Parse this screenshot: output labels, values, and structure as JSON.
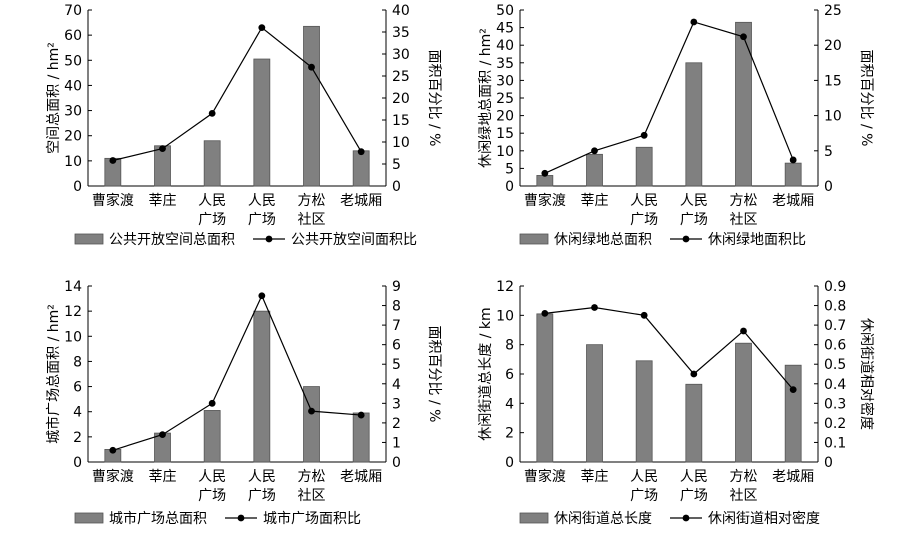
{
  "chart_data": [
    {
      "type": "bar",
      "categories": [
        [
          "曹家渡"
        ],
        [
          "莘庄"
        ],
        [
          "人民",
          "广场"
        ],
        [
          "人民",
          "广场"
        ],
        [
          "方松",
          "社区"
        ],
        [
          "老城厢"
        ]
      ],
      "series": [
        {
          "name": "公共开放空间总面积",
          "type": "bar",
          "axis": "left",
          "values": [
            11,
            16,
            18,
            50.5,
            63.5,
            14
          ]
        },
        {
          "name": "公共开放空间面积比",
          "type": "line",
          "axis": "right",
          "values": [
            5.8,
            8.5,
            16.5,
            36,
            27,
            7.8
          ]
        }
      ],
      "ylabel": "空间总面积 / hm²",
      "y2label": "面积百分比 / %",
      "ylim": [
        0,
        70
      ],
      "yticks": [
        0,
        10,
        20,
        30,
        40,
        50,
        60,
        70
      ],
      "y2lim": [
        0,
        40
      ],
      "y2ticks": [
        0,
        5,
        10,
        15,
        20,
        25,
        30,
        35,
        40
      ],
      "legend": "bottom",
      "grid": false
    },
    {
      "type": "bar",
      "categories": [
        [
          "曹家渡"
        ],
        [
          "莘庄"
        ],
        [
          "人民",
          "广场"
        ],
        [
          "人民",
          "广场"
        ],
        [
          "方松",
          "社区"
        ],
        [
          "老城厢"
        ]
      ],
      "series": [
        {
          "name": "休闲绿地总面积",
          "type": "bar",
          "axis": "left",
          "values": [
            3,
            9,
            11,
            35,
            46.5,
            6.5
          ]
        },
        {
          "name": "休闲绿地面积比",
          "type": "line",
          "axis": "right",
          "values": [
            1.8,
            5,
            7.2,
            23.3,
            21.2,
            3.7
          ]
        }
      ],
      "ylabel": "休闲绿地总面积 / hm²",
      "y2label": "面积百分比 / %",
      "ylim": [
        0,
        50
      ],
      "yticks": [
        0,
        5,
        10,
        15,
        20,
        25,
        30,
        35,
        40,
        45,
        50
      ],
      "y2lim": [
        0,
        25
      ],
      "y2ticks": [
        0,
        5,
        10,
        15,
        20,
        25
      ],
      "legend": "bottom",
      "grid": false
    },
    {
      "type": "bar",
      "categories": [
        [
          "曹家渡"
        ],
        [
          "莘庄"
        ],
        [
          "人民",
          "广场"
        ],
        [
          "人民",
          "广场"
        ],
        [
          "方松",
          "社区"
        ],
        [
          "老城厢"
        ]
      ],
      "series": [
        {
          "name": "城市广场总面积",
          "type": "bar",
          "axis": "left",
          "values": [
            1,
            2.3,
            4.1,
            12,
            6,
            3.9
          ]
        },
        {
          "name": "城市广场面积比",
          "type": "line",
          "axis": "right",
          "values": [
            0.6,
            1.4,
            3,
            8.5,
            2.6,
            2.4
          ]
        }
      ],
      "ylabel": "城市广场总面积 / hm²",
      "y2label": "面积百分比 / %",
      "ylim": [
        0,
        14
      ],
      "yticks": [
        0,
        2,
        4,
        6,
        8,
        10,
        12,
        14
      ],
      "y2lim": [
        0,
        9
      ],
      "y2ticks": [
        0,
        1,
        2,
        3,
        4,
        5,
        6,
        7,
        8,
        9
      ],
      "legend": "bottom",
      "grid": false
    },
    {
      "type": "bar",
      "categories": [
        [
          "曹家渡"
        ],
        [
          "莘庄"
        ],
        [
          "人民",
          "广场"
        ],
        [
          "人民",
          "广场"
        ],
        [
          "方松",
          "社区"
        ],
        [
          "老城厢"
        ]
      ],
      "series": [
        {
          "name": "休闲街道总长度",
          "type": "bar",
          "axis": "left",
          "values": [
            10.1,
            8,
            6.9,
            5.3,
            8.1,
            6.6
          ]
        },
        {
          "name": "休闲街道相对密度",
          "type": "line",
          "axis": "right",
          "values": [
            0.76,
            0.79,
            0.75,
            0.45,
            0.67,
            0.37
          ]
        }
      ],
      "ylabel": "休闲街道总长度 / km",
      "y2label": "休闲街道相对密度",
      "ylim": [
        0,
        12
      ],
      "yticks": [
        0,
        2,
        4,
        6,
        8,
        10,
        12
      ],
      "y2lim": [
        0,
        0.9
      ],
      "y2ticks": [
        0,
        0.1,
        0.2,
        0.3,
        0.4,
        0.5,
        0.6,
        0.7,
        0.8,
        0.9
      ],
      "legend": "bottom",
      "grid": false
    }
  ],
  "colors": {
    "bar_fill": "#808080",
    "bar_stroke": "#555555",
    "line": "#000000",
    "axis": "#000000"
  }
}
